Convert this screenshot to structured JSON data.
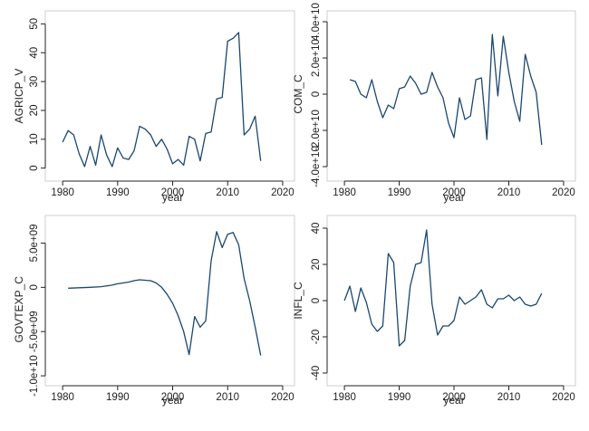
{
  "chart_data": [
    {
      "type": "line",
      "title": "",
      "xlabel": "year",
      "ylabel": "AGRICP_V",
      "x_ticks": [
        "1980",
        "1990",
        "2000",
        "2010",
        "2020"
      ],
      "y_ticks": [
        "0",
        "10",
        "20",
        "30",
        "40",
        "50"
      ],
      "xlim": [
        1978,
        2021
      ],
      "ylim": [
        -2,
        52
      ],
      "grid": false,
      "series": [
        {
          "x": [
            1980,
            1981,
            1982,
            1983,
            1984,
            1985,
            1986,
            1987,
            1988,
            1989,
            1990,
            1991,
            1992,
            1993,
            1994,
            1995,
            1996,
            1997,
            1998,
            1999,
            2000,
            2001,
            2002,
            2003,
            2004,
            2005,
            2006,
            2007,
            2008,
            2009,
            2010,
            2011,
            2012,
            2013,
            2014,
            2015,
            2016
          ],
          "y": [
            9,
            13,
            11.5,
            5,
            0.5,
            7.5,
            1,
            11.5,
            4.5,
            0.5,
            7,
            3.5,
            3,
            6,
            14.5,
            13.5,
            11.5,
            7.5,
            10,
            6.5,
            1.5,
            3,
            1,
            11,
            10,
            2.5,
            12,
            12.5,
            24,
            24.5,
            44,
            45,
            47,
            11.5,
            13.5,
            18,
            2.5
          ]
        }
      ]
    },
    {
      "type": "line",
      "title": "",
      "xlabel": "year",
      "ylabel": "COM_C",
      "x_ticks": [
        "1980",
        "1990",
        "2000",
        "2010",
        "2020"
      ],
      "y_ticks": [
        "-4.0e+10",
        "-2.0e+10",
        "0",
        "2.0e+10",
        "4.0e+10"
      ],
      "xlim": [
        1978,
        2021
      ],
      "ylim": [
        -44000000000.0,
        42000000000.0
      ],
      "grid": false,
      "series": [
        {
          "x": [
            1981,
            1982,
            1983,
            1984,
            1985,
            1986,
            1987,
            1988,
            1989,
            1990,
            1991,
            1992,
            1993,
            1994,
            1995,
            1996,
            1997,
            1998,
            1999,
            2000,
            2001,
            2002,
            2003,
            2004,
            2005,
            2006,
            2007,
            2008,
            2009,
            2010,
            2011,
            2012,
            2013,
            2014,
            2015,
            2016
          ],
          "y": [
            8000000000.0,
            7000000000.0,
            0,
            -2000000000.0,
            8000000000.0,
            -4000000000.0,
            -13000000000.0,
            -6000000000.0,
            -8000000000.0,
            3000000000.0,
            4000000000.0,
            10000000000.0,
            6000000000.0,
            0,
            1000000000.0,
            12000000000.0,
            4000000000.0,
            -2000000000.0,
            -16000000000.0,
            -24000000000.0,
            -2000000000.0,
            -14000000000.0,
            -12000000000.0,
            8000000000.0,
            9000000000.0,
            -25000000000.0,
            33000000000.0,
            -1000000000.0,
            32000000000.0,
            12000000000.0,
            -4000000000.0,
            -15000000000.0,
            22000000000.0,
            10000000000.0,
            1000000000.0,
            -28000000000.0
          ]
        }
      ]
    },
    {
      "type": "line",
      "title": "",
      "xlabel": "year",
      "ylabel": "GOVTEXP_C",
      "x_ticks": [
        "1980",
        "1990",
        "2000",
        "2010",
        "2020"
      ],
      "y_ticks": [
        "-1.0e+10",
        "-5.0e+09",
        "0",
        "5.0e+09"
      ],
      "xlim": [
        1978,
        2021
      ],
      "ylim": [
        -10300000000.0,
        7300000000.0
      ],
      "grid": false,
      "series": [
        {
          "x": [
            1981,
            1983,
            1985,
            1987,
            1989,
            1990,
            1991,
            1992,
            1993,
            1994,
            1995,
            1996,
            1997,
            1998,
            1999,
            2000,
            2001,
            2002,
            2003,
            2004,
            2005,
            2006,
            2007,
            2008,
            2009,
            2010,
            2011,
            2012,
            2013,
            2014,
            2015,
            2016
          ],
          "y": [
            -100000000.0,
            -50000000.0,
            0,
            80000000.0,
            250000000.0,
            400000000.0,
            500000000.0,
            600000000.0,
            750000000.0,
            850000000.0,
            800000000.0,
            750000000.0,
            500000000.0,
            0,
            -800000000.0,
            -1800000000.0,
            -3200000000.0,
            -5000000000.0,
            -7600000000.0,
            -3300000000.0,
            -4500000000.0,
            -3800000000.0,
            3000000000.0,
            6300000000.0,
            4500000000.0,
            6000000000.0,
            6200000000.0,
            4800000000.0,
            1000000000.0,
            -1500000000.0,
            -4500000000.0,
            -7700000000.0
          ]
        }
      ]
    },
    {
      "type": "line",
      "title": "",
      "xlabel": "year",
      "ylabel": "INFL_C",
      "x_ticks": [
        "1980",
        "1990",
        "2000",
        "2010",
        "2020"
      ],
      "y_ticks": [
        "-40",
        "-20",
        "0",
        "20",
        "40"
      ],
      "xlim": [
        1978,
        2021
      ],
      "ylim": [
        -43,
        43
      ],
      "grid": false,
      "series": [
        {
          "x": [
            1980,
            1981,
            1982,
            1983,
            1984,
            1985,
            1986,
            1987,
            1988,
            1989,
            1990,
            1991,
            1992,
            1993,
            1994,
            1995,
            1996,
            1997,
            1998,
            1999,
            2000,
            2001,
            2002,
            2003,
            2004,
            2005,
            2006,
            2007,
            2008,
            2009,
            2010,
            2011,
            2012,
            2013,
            2014,
            2015,
            2016
          ],
          "y": [
            0,
            8,
            -6,
            7,
            -1,
            -13,
            -17,
            -14,
            26,
            21,
            -25,
            -22,
            8,
            20,
            21,
            39,
            -2,
            -19,
            -14,
            -14,
            -11,
            2,
            -2,
            0,
            2,
            6,
            -2,
            -4,
            1,
            1,
            3,
            0,
            2,
            -2,
            -3,
            -2,
            4
          ]
        }
      ]
    }
  ]
}
